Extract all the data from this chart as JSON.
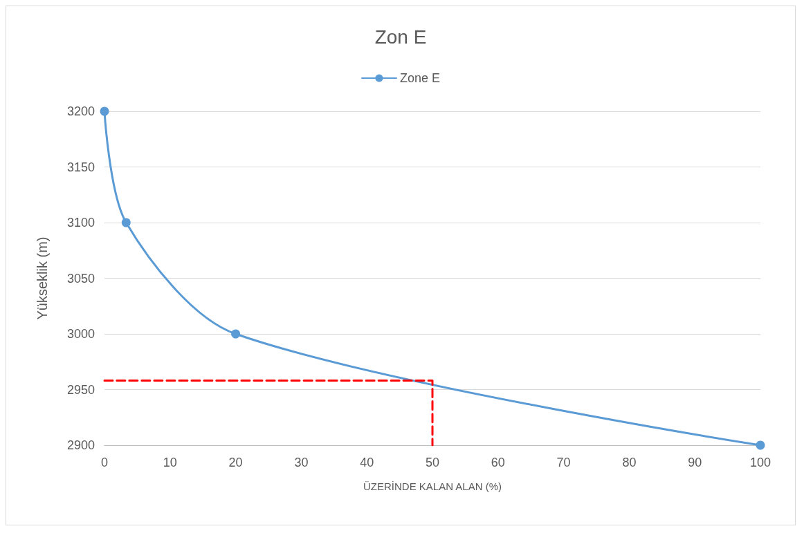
{
  "chart_data": {
    "type": "line",
    "title": "Zon E",
    "xlabel": "ÜZERİNDE KALAN ALAN (%)",
    "ylabel": "Yükseklik (m)",
    "series": [
      {
        "name": "Zone E",
        "color": "#5b9bd5",
        "x": [
          0,
          3.3,
          20,
          100
        ],
        "values": [
          3200,
          3100,
          3000,
          2900
        ],
        "marker": "circle",
        "line_style": "solid"
      },
      {
        "color": "#ff0000",
        "x": [
          0,
          50,
          50
        ],
        "values": [
          2958,
          2958,
          2900
        ],
        "marker": "none",
        "line_style": "dashed"
      }
    ],
    "xlim": [
      0,
      100
    ],
    "xticks": [
      0,
      10,
      20,
      30,
      40,
      50,
      60,
      70,
      80,
      90,
      100
    ],
    "ylim": [
      2900,
      3200
    ],
    "yticks": [
      2900,
      2950,
      3000,
      3050,
      3100,
      3150,
      3200
    ],
    "grid": "y",
    "legend": "top"
  }
}
